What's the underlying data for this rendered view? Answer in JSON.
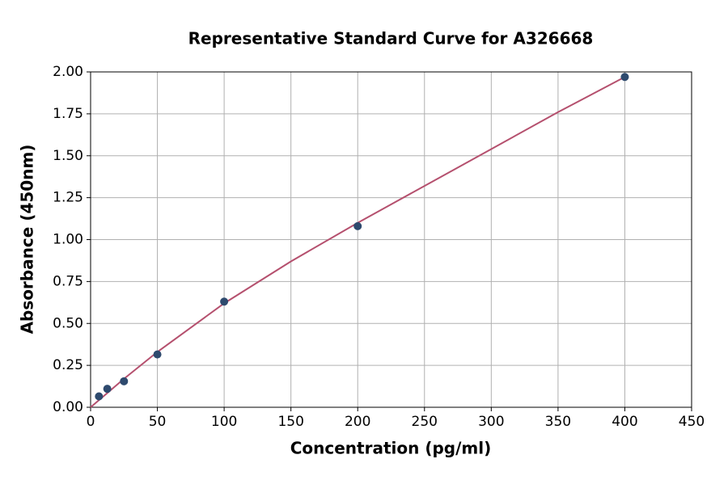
{
  "chart_data": {
    "type": "scatter",
    "title": "Representative Standard Curve for A326668",
    "xlabel": "Concentration (pg/ml)",
    "ylabel": "Absorbance (450nm)",
    "x": [
      6.25,
      12.5,
      25,
      50,
      100,
      200,
      400
    ],
    "values": [
      0.065,
      0.11,
      0.155,
      0.315,
      0.63,
      1.08,
      1.97
    ],
    "color": "#2e4a6e",
    "fit": {
      "x": [
        0,
        25,
        50,
        100,
        150,
        200,
        250,
        300,
        350,
        400
      ],
      "values": [
        0.0,
        0.17,
        0.33,
        0.62,
        0.87,
        1.1,
        1.32,
        1.54,
        1.76,
        1.97
      ],
      "color": "#b5506e"
    },
    "xlim": [
      0,
      450
    ],
    "ylim": [
      0,
      2
    ],
    "xticks": [
      0,
      50,
      100,
      150,
      200,
      250,
      300,
      350,
      400,
      450
    ],
    "yticks": [
      {
        "value": 0,
        "label": "0.00"
      },
      {
        "value": 0.25,
        "label": "0.25"
      },
      {
        "value": 0.5,
        "label": "0.50"
      },
      {
        "value": 0.75,
        "label": "0.75"
      },
      {
        "value": 1,
        "label": "1.00"
      },
      {
        "value": 1.25,
        "label": "1.25"
      },
      {
        "value": 1.5,
        "label": "1.50"
      },
      {
        "value": 1.75,
        "label": "1.75"
      },
      {
        "value": 2,
        "label": "2.00"
      }
    ],
    "grid": true
  }
}
